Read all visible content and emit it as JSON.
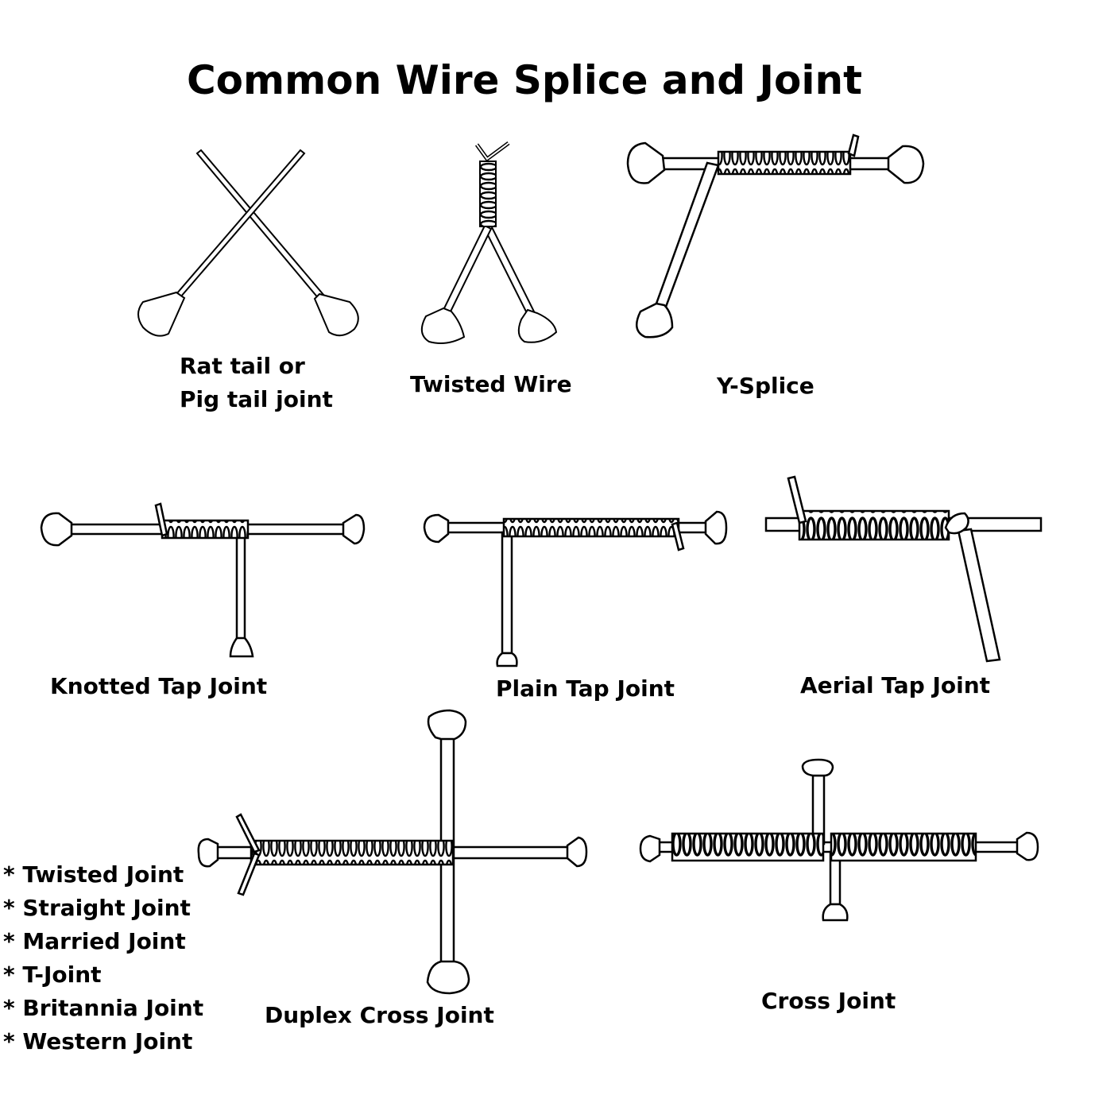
{
  "title": "Common Wire Splice and Joint",
  "labels": {
    "rat_tail_line1": "Rat tail or",
    "rat_tail_line2": "Pig tail joint",
    "twisted_wire": "Twisted Wire",
    "y_splice": "Y-Splice",
    "knotted_tap": "Knotted Tap Joint",
    "plain_tap": "Plain Tap Joint",
    "aerial_tap": "Aerial Tap Joint",
    "duplex_cross": "Duplex Cross Joint",
    "cross_joint": "Cross Joint"
  },
  "other_joints": [
    "* Twisted Joint",
    "* Straight Joint",
    "* Married Joint",
    "* T-Joint",
    "* Britannia Joint",
    "* Western Joint"
  ],
  "colors": {
    "stroke": "#000000",
    "background": "#ffffff"
  }
}
